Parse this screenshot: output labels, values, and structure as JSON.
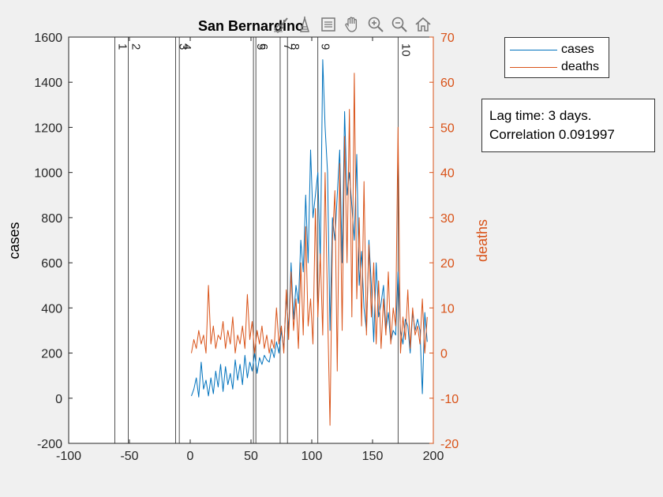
{
  "chart_data": {
    "type": "line",
    "title": "San Bernardino",
    "xlabel": "",
    "ylabel": "cases",
    "y2label": "deaths",
    "xlim": [
      -100,
      200
    ],
    "ylim": [
      -200,
      1600
    ],
    "y2lim": [
      -20,
      70
    ],
    "xticks": [
      -100,
      -50,
      0,
      50,
      100,
      150,
      200
    ],
    "yticks": [
      -200,
      0,
      200,
      400,
      600,
      800,
      1000,
      1200,
      1400,
      1600
    ],
    "y2ticks": [
      -20,
      -10,
      0,
      10,
      20,
      30,
      40,
      50,
      60,
      70
    ],
    "grid": false,
    "legend_position": "outside-top-right",
    "colors": {
      "cases": "#0072BD",
      "deaths": "#D95319"
    },
    "vertical_lines": [
      {
        "label": "1",
        "x": -62
      },
      {
        "label": "2",
        "x": -51
      },
      {
        "label": "3",
        "x": -12
      },
      {
        "label": "4",
        "x": -9
      },
      {
        "label": "5",
        "x": 52
      },
      {
        "label": "6",
        "x": 54
      },
      {
        "label": "7",
        "x": 74
      },
      {
        "label": "8",
        "x": 80
      },
      {
        "label": "9",
        "x": 105
      },
      {
        "label": "10",
        "x": 171
      }
    ],
    "series": [
      {
        "name": "cases",
        "axis": "left",
        "x": [
          1,
          3,
          5,
          7,
          9,
          11,
          13,
          15,
          17,
          19,
          21,
          23,
          25,
          27,
          29,
          31,
          33,
          35,
          37,
          39,
          41,
          43,
          45,
          47,
          49,
          51,
          53,
          55,
          57,
          59,
          61,
          63,
          65,
          67,
          69,
          71,
          73,
          75,
          77,
          79,
          81,
          83,
          85,
          87,
          89,
          91,
          93,
          95,
          97,
          99,
          101,
          103,
          105,
          107,
          109,
          111,
          113,
          115,
          117,
          119,
          121,
          123,
          125,
          127,
          129,
          131,
          133,
          135,
          137,
          139,
          141,
          143,
          145,
          147,
          149,
          151,
          153,
          155,
          157,
          159,
          161,
          163,
          165,
          167,
          169,
          171,
          173,
          175,
          177,
          179,
          181,
          183,
          185,
          187,
          189,
          191,
          193,
          195
        ],
        "values": [
          10,
          40,
          90,
          5,
          160,
          40,
          80,
          10,
          90,
          20,
          120,
          50,
          150,
          30,
          140,
          60,
          110,
          40,
          170,
          80,
          150,
          60,
          190,
          90,
          160,
          120,
          200,
          110,
          180,
          150,
          190,
          170,
          160,
          220,
          180,
          250,
          200,
          300,
          220,
          450,
          300,
          600,
          350,
          500,
          420,
          700,
          560,
          900,
          600,
          1100,
          800,
          900,
          1000,
          600,
          1500,
          1200,
          1000,
          300,
          800,
          700,
          900,
          1100,
          600,
          1270,
          900,
          1000,
          850,
          700,
          1080,
          500,
          650,
          400,
          300,
          700,
          500,
          250,
          600,
          360,
          420,
          500,
          300,
          380,
          250,
          300,
          280,
          560,
          300,
          240,
          350,
          320,
          200,
          380,
          300,
          350,
          300,
          20,
          380,
          250
        ]
      },
      {
        "name": "deaths",
        "axis": "right",
        "x": [
          1,
          3,
          5,
          7,
          9,
          11,
          13,
          15,
          17,
          19,
          21,
          23,
          25,
          27,
          29,
          31,
          33,
          35,
          37,
          39,
          41,
          43,
          45,
          47,
          49,
          51,
          53,
          55,
          57,
          59,
          61,
          63,
          65,
          67,
          69,
          71,
          73,
          75,
          77,
          79,
          81,
          83,
          85,
          87,
          89,
          91,
          93,
          95,
          97,
          99,
          101,
          103,
          105,
          107,
          109,
          111,
          113,
          115,
          117,
          119,
          121,
          123,
          125,
          127,
          129,
          131,
          133,
          135,
          137,
          139,
          141,
          143,
          145,
          147,
          149,
          151,
          153,
          155,
          157,
          159,
          161,
          163,
          165,
          167,
          169,
          171,
          173,
          175,
          177,
          179,
          181,
          183,
          185,
          187,
          189,
          191,
          193,
          195
        ],
        "values": [
          0,
          3,
          1,
          5,
          2,
          4,
          0,
          15,
          2,
          6,
          1,
          4,
          3,
          7,
          1,
          5,
          2,
          8,
          0,
          4,
          2,
          6,
          1,
          13,
          3,
          7,
          0,
          5,
          2,
          6,
          1,
          4,
          0,
          3,
          1,
          10,
          2,
          6,
          0,
          14,
          3,
          18,
          5,
          12,
          1,
          20,
          4,
          28,
          6,
          12,
          2,
          32,
          8,
          22,
          4,
          40,
          10,
          -16,
          25,
          36,
          -4,
          42,
          5,
          48,
          20,
          54,
          8,
          62,
          12,
          30,
          6,
          38,
          4,
          24,
          8,
          20,
          2,
          16,
          1,
          12,
          4,
          18,
          2,
          10,
          6,
          50,
          0,
          8,
          3,
          14,
          1,
          10,
          4,
          6,
          2,
          12,
          0,
          8
        ]
      }
    ]
  },
  "legend": {
    "items": [
      {
        "label": "cases",
        "color": "#0072BD"
      },
      {
        "label": "deaths",
        "color": "#D95319"
      }
    ]
  },
  "annotation": {
    "line1": "Lag time: 3 days.",
    "line2": "Correlation 0.091997"
  },
  "toolbar": {
    "icons": [
      "brush-icon",
      "data-cursor-icon",
      "legend-toggle-icon",
      "pan-hand-icon",
      "zoom-in-icon",
      "zoom-out-icon",
      "home-icon"
    ]
  }
}
